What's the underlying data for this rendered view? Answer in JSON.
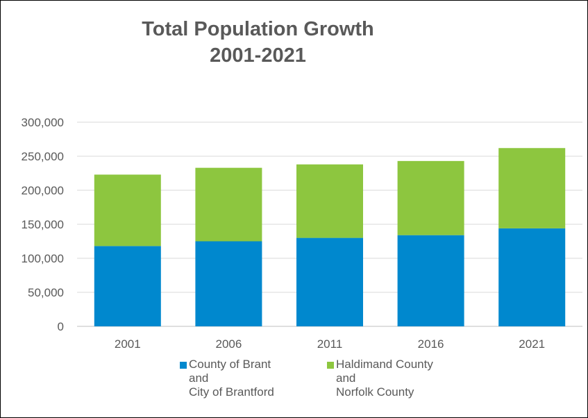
{
  "chart_data": {
    "type": "bar",
    "stacked": true,
    "title": [
      "Total Population Growth",
      "2001-2021"
    ],
    "categories": [
      "2001",
      "2006",
      "2011",
      "2016",
      "2021"
    ],
    "series": [
      {
        "name": "County of Brant\nand\nCity of Brantford",
        "color": "#0088CE",
        "values": [
          118000,
          125000,
          130000,
          134000,
          144000
        ]
      },
      {
        "name": "Haldimand County\nand\nNorfolk County",
        "color": "#8DC63F",
        "values": [
          105000,
          108000,
          108000,
          109000,
          118000
        ]
      }
    ],
    "ylim": [
      0,
      300000
    ],
    "yticks": [
      "0",
      "50,000",
      "100,000",
      "150,000",
      "200,000",
      "250,000",
      "300,000"
    ],
    "ytick_values": [
      0,
      50000,
      100000,
      150000,
      200000,
      250000,
      300000
    ],
    "grid": true,
    "legend_position": "bottom"
  }
}
